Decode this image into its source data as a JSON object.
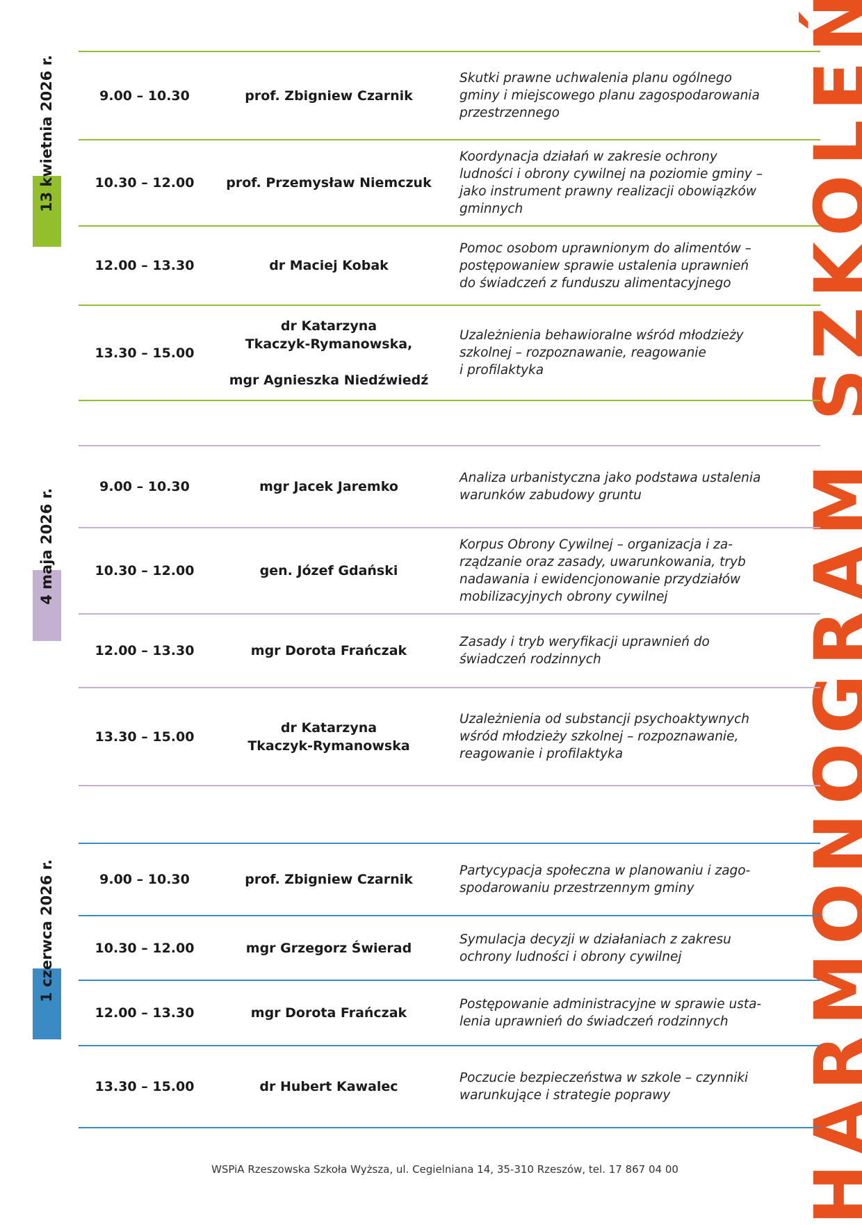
{
  "title": "HARMONOGRAM SZKOLEŃ",
  "colors": {
    "title": "#e8501e",
    "green": "#94bf2d",
    "purple": "#c4b1d2",
    "blue": "#3a8ac4"
  },
  "sections": [
    {
      "date": "13 kwietnia 2026 r.",
      "rows": [
        {
          "time": "9.00 – 10.30",
          "speaker": "prof. Zbigniew Czarnik",
          "topic": "Skutki prawne uchwalenia planu ogólnego\ngminy i miejscowego planu zagospodarowania\nprzestrzennego"
        },
        {
          "time": "10.30 – 12.00",
          "speaker": "prof. Przemysław Niemczuk",
          "topic": "Koordynacja działań w zakresie ochrony\nludności i obrony cywilnej na poziomie gminy –\njako instrument prawny realizacji obowiązków\ngminnych"
        },
        {
          "time": "12.00 – 13.30",
          "speaker": "dr Maciej Kobak",
          "topic": "Pomoc osobom uprawnionym  do alimentów –\npostępowaniew sprawie ustalenia uprawnień\ndo świadczeń z funduszu alimentacyjnego"
        },
        {
          "time": "13.30 – 15.00",
          "speaker": "dr Katarzyna\nTkaczyk-Rymanowska,\n\nmgr Agnieszka Niedźwiedź",
          "topic": "Uzależnienia behawioralne wśród młodzieży\nszkolnej – rozpoznawanie, reagowanie\ni profilaktyka"
        }
      ]
    },
    {
      "date": "4 maja 2026 r.",
      "rows": [
        {
          "time": "9.00 – 10.30",
          "speaker": "mgr Jacek Jaremko",
          "topic": "Analiza urbanistyczna jako podstawa ustalenia\nwarunków zabudowy gruntu"
        },
        {
          "time": "10.30 – 12.00",
          "speaker": "gen. Józef Gdański",
          "topic": "Korpus Obrony Cywilnej  – organizacja i za-\nrządzanie oraz zasady, uwarunkowania, tryb\nnadawania i ewidencjonowanie przydziałów\nmobilizacyjnych obrony cywilnej"
        },
        {
          "time": "12.00 – 13.30",
          "speaker": "mgr Dorota Frańczak",
          "topic": "Zasady i tryb weryfikacji uprawnień do\nświadczeń rodzinnych"
        },
        {
          "time": "13.30 – 15.00",
          "speaker": "dr Katarzyna\nTkaczyk-Rymanowska",
          "topic": "Uzależnienia od substancji psychoaktywnych\nwśród młodzieży szkolnej – rozpoznawanie,\nreagowanie i profilaktyka"
        }
      ]
    },
    {
      "date": "1 czerwca 2026 r.",
      "rows": [
        {
          "time": "9.00 – 10.30",
          "speaker": "prof. Zbigniew Czarnik",
          "topic": "Partycypacja społeczna w planowaniu i zago-\nspodarowaniu przestrzennym gminy"
        },
        {
          "time": "10.30 – 12.00",
          "speaker": "mgr Grzegorz Świerad",
          "topic": "Symulacja decyzji w działaniach z zakresu\nochrony ludności i obrony cywilnej"
        },
        {
          "time": "12.00 – 13.30",
          "speaker": "mgr Dorota Frańczak",
          "topic": "Postępowanie administracyjne w sprawie usta-\nlenia uprawnień do świadczeń rodzinnych"
        },
        {
          "time": "13.30 – 15.00",
          "speaker": "dr Hubert Kawalec",
          "topic": "Poczucie bezpieczeństwa w szkole – czynniki\nwarunkujące i strategie poprawy"
        }
      ]
    }
  ],
  "footer": "WSPiA Rzeszowska Szkoła Wyższa, ul. Cegielniana 14, 35-310 Rzeszów, tel. 17 867 04 00"
}
